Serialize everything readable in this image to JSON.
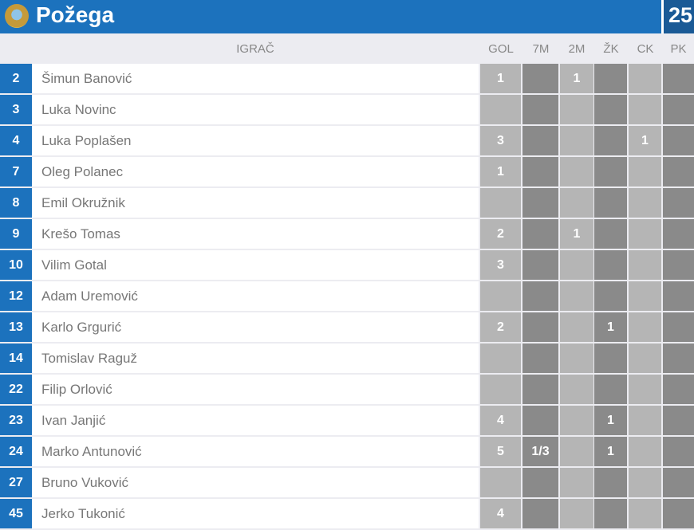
{
  "team": {
    "name": "Požega",
    "score": "25",
    "crest": "Požega coat of arms"
  },
  "columns": {
    "player": "IGRAČ",
    "gol": "GOL",
    "m7": "7M",
    "m2": "2M",
    "zk": "ŽK",
    "ck": "CK",
    "pk": "PK"
  },
  "colors": {
    "blue": "#1c72bd",
    "score_bg": "#1a5a96",
    "light_cell": "#b5b5b5",
    "dark_cell": "#8a8a8a"
  },
  "players": [
    {
      "num": "2",
      "name": "Šimun Banović",
      "gol": "1",
      "m7": "",
      "m2": "1",
      "zk": "",
      "ck": "",
      "pk": ""
    },
    {
      "num": "3",
      "name": "Luka Novinc",
      "gol": "",
      "m7": "",
      "m2": "",
      "zk": "",
      "ck": "",
      "pk": ""
    },
    {
      "num": "4",
      "name": "Luka Poplašen",
      "gol": "3",
      "m7": "",
      "m2": "",
      "zk": "",
      "ck": "1",
      "pk": ""
    },
    {
      "num": "7",
      "name": "Oleg Polanec",
      "gol": "1",
      "m7": "",
      "m2": "",
      "zk": "",
      "ck": "",
      "pk": ""
    },
    {
      "num": "8",
      "name": "Emil Okružnik",
      "gol": "",
      "m7": "",
      "m2": "",
      "zk": "",
      "ck": "",
      "pk": ""
    },
    {
      "num": "9",
      "name": "Krešo Tomas",
      "gol": "2",
      "m7": "",
      "m2": "1",
      "zk": "",
      "ck": "",
      "pk": ""
    },
    {
      "num": "10",
      "name": "Vilim Gotal",
      "gol": "3",
      "m7": "",
      "m2": "",
      "zk": "",
      "ck": "",
      "pk": ""
    },
    {
      "num": "12",
      "name": "Adam Uremović",
      "gol": "",
      "m7": "",
      "m2": "",
      "zk": "",
      "ck": "",
      "pk": ""
    },
    {
      "num": "13",
      "name": "Karlo Grgurić",
      "gol": "2",
      "m7": "",
      "m2": "",
      "zk": "1",
      "ck": "",
      "pk": ""
    },
    {
      "num": "14",
      "name": "Tomislav Raguž",
      "gol": "",
      "m7": "",
      "m2": "",
      "zk": "",
      "ck": "",
      "pk": ""
    },
    {
      "num": "22",
      "name": "Filip Orlović",
      "gol": "",
      "m7": "",
      "m2": "",
      "zk": "",
      "ck": "",
      "pk": ""
    },
    {
      "num": "23",
      "name": "Ivan Janjić",
      "gol": "4",
      "m7": "",
      "m2": "",
      "zk": "1",
      "ck": "",
      "pk": ""
    },
    {
      "num": "24",
      "name": "Marko Antunović",
      "gol": "5",
      "m7": "1/3",
      "m2": "",
      "zk": "1",
      "ck": "",
      "pk": ""
    },
    {
      "num": "27",
      "name": "Bruno Vuković",
      "gol": "",
      "m7": "",
      "m2": "",
      "zk": "",
      "ck": "",
      "pk": ""
    },
    {
      "num": "45",
      "name": "Jerko Tukonić",
      "gol": "4",
      "m7": "",
      "m2": "",
      "zk": "",
      "ck": "",
      "pk": ""
    }
  ]
}
